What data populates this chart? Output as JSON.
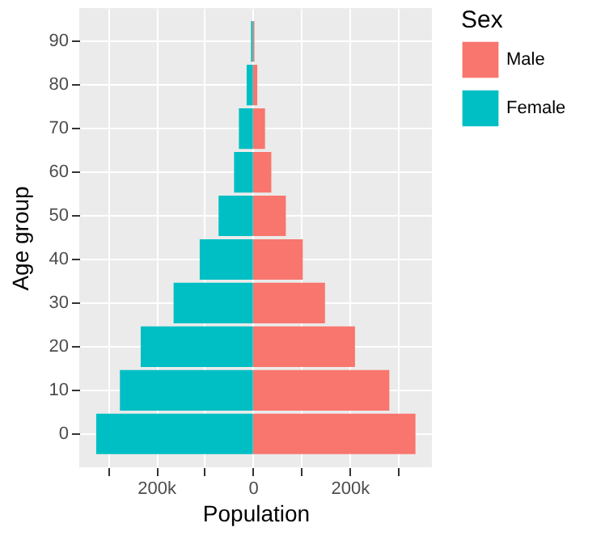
{
  "chart_data": {
    "type": "bar",
    "orientation": "horizontal",
    "xlabel": "Population",
    "ylabel": "Age group",
    "legend_title": "Sex",
    "categories": [
      "90",
      "80",
      "70",
      "60",
      "50",
      "40",
      "30",
      "20",
      "10",
      "0"
    ],
    "series": [
      {
        "name": "Male",
        "color": "#f8766d",
        "values": [
          3000,
          9000,
          25000,
          38000,
          68000,
          103000,
          149000,
          211000,
          282000,
          336000
        ]
      },
      {
        "name": "Female",
        "color": "#00bfc4",
        "values": [
          -4000,
          -13000,
          -29000,
          -39000,
          -71000,
          -110000,
          -164000,
          -232000,
          -275000,
          -324000
        ]
      }
    ],
    "xlim": [
      -359000,
      370000
    ],
    "xticks": [
      {
        "value": -300000,
        "label": null
      },
      {
        "value": -200000,
        "label": "200k"
      },
      {
        "value": -100000,
        "label": null
      },
      0,
      {
        "value": 100000,
        "label": null
      },
      {
        "value": 200000,
        "label": "200k"
      },
      {
        "value": 300000,
        "label": null
      }
    ],
    "grid": true,
    "legend": "right",
    "stacked": true
  }
}
